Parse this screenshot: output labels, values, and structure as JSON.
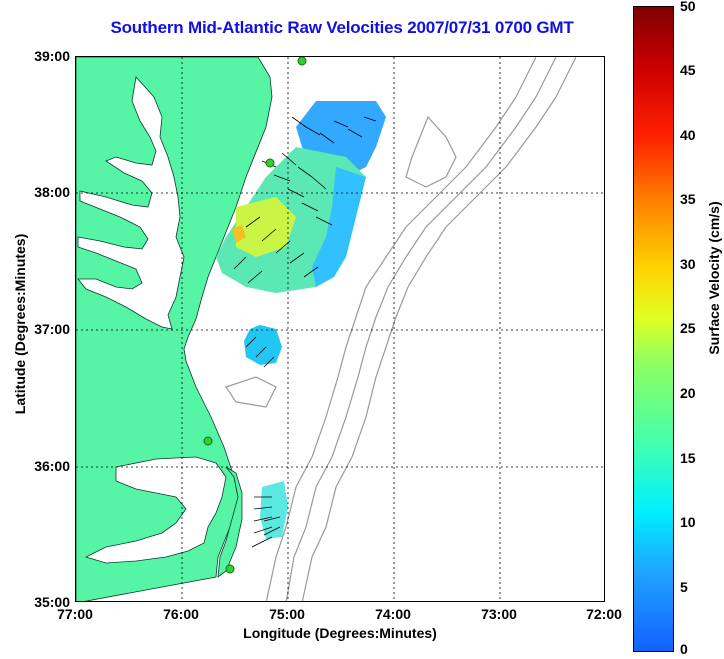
{
  "title": "Southern Mid-Atlantic Raw Velocities 2007/07/31 0700 GMT",
  "axes": {
    "xlabel": "Longitude (Degrees:Minutes)",
    "ylabel": "Latitude (Degrees:Minutes)",
    "x_ticks": [
      "77:00",
      "76:00",
      "75:00",
      "74:00",
      "73:00",
      "72:00"
    ],
    "y_ticks": [
      "39:00",
      "38:00",
      "37:00",
      "36:00",
      "35:00"
    ]
  },
  "colorbar": {
    "label": "Surface Velocity (cm/s)",
    "ticks": [
      "50",
      "45",
      "40",
      "35",
      "30",
      "25",
      "20",
      "15",
      "10",
      "5",
      "0"
    ],
    "min": 0,
    "max": 50
  },
  "colors": {
    "land": "#55f5a5",
    "title": "#1010e0",
    "grid": "#000000",
    "bathymetry": "#999999",
    "station": "#30d030"
  }
}
